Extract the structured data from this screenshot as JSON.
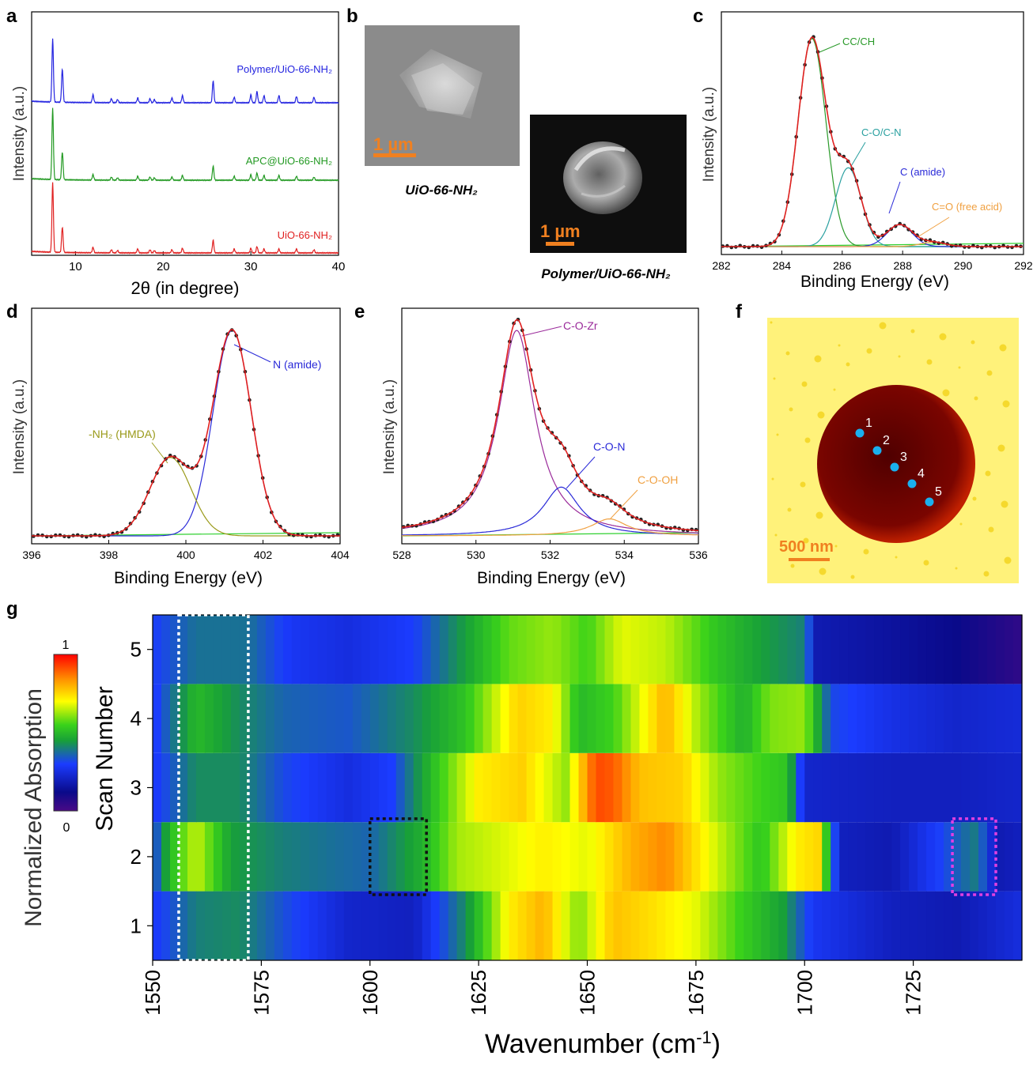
{
  "panels": {
    "a": {
      "letter": "a"
    },
    "b": {
      "letter": "b",
      "scale_left": "1 µm",
      "scale_right": "1 µm",
      "caption_left": "UiO-66-NH₂",
      "caption_right": "Polymer/UiO-66-NH₂"
    },
    "c": {
      "letter": "c"
    },
    "d": {
      "letter": "d"
    },
    "e": {
      "letter": "e"
    },
    "f": {
      "letter": "f",
      "scale": "500 nm",
      "points": [
        "1",
        "2",
        "3",
        "4",
        "5"
      ]
    },
    "g": {
      "letter": "g"
    }
  },
  "chart_data": [
    {
      "panel": "a",
      "type": "line",
      "xlabel": "2θ (in degree)",
      "ylabel": "Intensity (a.u.)",
      "xlim": [
        5,
        40
      ],
      "xticks": [
        10,
        20,
        30,
        40
      ],
      "peaks_2theta": [
        7.4,
        8.5,
        12.0,
        14.1,
        14.8,
        17.1,
        18.5,
        19.0,
        21.0,
        22.2,
        25.7,
        28.1,
        30.0,
        30.7,
        31.5,
        33.2,
        35.2,
        37.2
      ],
      "series": [
        {
          "name": "Polymer/UiO-66-NH₂",
          "color": "#2424e0"
        },
        {
          "name": "APC@UiO-66-NH₂",
          "color": "#229922"
        },
        {
          "name": "UiO-66-NH₂",
          "color": "#e02020"
        }
      ]
    },
    {
      "panel": "c",
      "type": "line",
      "xlabel": "Binding Energy (eV)",
      "ylabel": "Intensity (a.u.)",
      "xlim": [
        282,
        292
      ],
      "xticks": [
        282,
        284,
        286,
        288,
        290,
        292
      ],
      "components": [
        {
          "name": "CC/CH",
          "center": 285.0,
          "height": 0.95,
          "width": 0.65,
          "color": "#2a9a2a"
        },
        {
          "name": "C-O/C-N",
          "center": 286.2,
          "height": 0.36,
          "width": 0.6,
          "color": "#2aa0a0"
        },
        {
          "name": "C (amide)",
          "center": 287.9,
          "height": 0.1,
          "width": 0.6,
          "color": "#2a2ad8"
        },
        {
          "name": "C=O (free acid)",
          "center": 289.0,
          "height": 0.02,
          "width": 0.6,
          "color": "#f0a040"
        }
      ]
    },
    {
      "panel": "d",
      "type": "line",
      "xlabel": "Binding Energy (eV)",
      "ylabel": "Intensity (a.u.)",
      "xlim": [
        396,
        404
      ],
      "xticks": [
        396,
        398,
        400,
        402,
        404
      ],
      "components": [
        {
          "name": "N (amide)",
          "center": 401.2,
          "height": 0.97,
          "width": 0.7,
          "color": "#2a2ad8"
        },
        {
          "name": "-NH₂ (HMDA)",
          "center": 399.6,
          "height": 0.37,
          "width": 0.75,
          "color": "#9a9a1a"
        }
      ]
    },
    {
      "panel": "e",
      "type": "line",
      "xlabel": "Binding Energy (eV)",
      "ylabel": "Intensity (a.u.)",
      "xlim": [
        528,
        536
      ],
      "xticks": [
        528,
        530,
        532,
        534,
        536
      ],
      "components": [
        {
          "name": "C-O-Zr",
          "center": 531.1,
          "height": 0.97,
          "width": 0.6,
          "color": "#9a2a9a"
        },
        {
          "name": "C-O-N",
          "center": 532.3,
          "height": 0.23,
          "width": 0.6,
          "color": "#2a2ad8"
        },
        {
          "name": "C-O-OH",
          "center": 533.6,
          "height": 0.08,
          "width": 0.6,
          "color": "#f0a040"
        }
      ]
    },
    {
      "panel": "g",
      "type": "heatmap",
      "xlabel": "Wavenumber (cm⁻¹)",
      "ylabel": "Scan Number",
      "xlim": [
        1550,
        1750
      ],
      "xticks": [
        1550,
        1575,
        1600,
        1625,
        1650,
        1675,
        1700,
        1725
      ],
      "yticks": [
        1,
        2,
        3,
        4,
        5
      ],
      "colorbar": {
        "label": "Normalized  Absorption",
        "min": "0",
        "max": "1"
      },
      "rows": [
        {
          "scan": 1,
          "profile": [
            [
              1550,
              0.28
            ],
            [
              1560,
              0.4
            ],
            [
              1570,
              0.42
            ],
            [
              1580,
              0.33
            ],
            [
              1595,
              0.22
            ],
            [
              1610,
              0.2
            ],
            [
              1622,
              0.42
            ],
            [
              1632,
              0.72
            ],
            [
              1640,
              0.8
            ],
            [
              1648,
              0.6
            ],
            [
              1656,
              0.78
            ],
            [
              1665,
              0.74
            ],
            [
              1675,
              0.68
            ],
            [
              1685,
              0.55
            ],
            [
              1695,
              0.45
            ],
            [
              1702,
              0.28
            ],
            [
              1720,
              0.2
            ],
            [
              1735,
              0.18
            ],
            [
              1750,
              0.25
            ]
          ]
        },
        {
          "scan": 2,
          "profile": [
            [
              1550,
              0.3
            ],
            [
              1554,
              0.5
            ],
            [
              1560,
              0.66
            ],
            [
              1568,
              0.45
            ],
            [
              1580,
              0.4
            ],
            [
              1590,
              0.38
            ],
            [
              1600,
              0.36
            ],
            [
              1612,
              0.48
            ],
            [
              1620,
              0.63
            ],
            [
              1632,
              0.68
            ],
            [
              1640,
              0.72
            ],
            [
              1650,
              0.68
            ],
            [
              1660,
              0.8
            ],
            [
              1668,
              0.85
            ],
            [
              1680,
              0.66
            ],
            [
              1690,
              0.52
            ],
            [
              1698,
              0.72
            ],
            [
              1703,
              0.75
            ],
            [
              1708,
              0.2
            ],
            [
              1720,
              0.18
            ],
            [
              1735,
              0.35
            ],
            [
              1740,
              0.4
            ],
            [
              1744,
              0.18
            ],
            [
              1750,
              0.2
            ]
          ]
        },
        {
          "scan": 3,
          "profile": [
            [
              1550,
              0.28
            ],
            [
              1560,
              0.42
            ],
            [
              1570,
              0.42
            ],
            [
              1580,
              0.32
            ],
            [
              1595,
              0.25
            ],
            [
              1605,
              0.3
            ],
            [
              1615,
              0.52
            ],
            [
              1625,
              0.72
            ],
            [
              1635,
              0.76
            ],
            [
              1645,
              0.62
            ],
            [
              1652,
              0.92
            ],
            [
              1656,
              0.9
            ],
            [
              1662,
              0.78
            ],
            [
              1672,
              0.76
            ],
            [
              1680,
              0.62
            ],
            [
              1690,
              0.55
            ],
            [
              1696,
              0.52
            ],
            [
              1700,
              0.22
            ],
            [
              1720,
              0.2
            ],
            [
              1735,
              0.2
            ],
            [
              1750,
              0.22
            ]
          ]
        },
        {
          "scan": 4,
          "profile": [
            [
              1550,
              0.28
            ],
            [
              1560,
              0.5
            ],
            [
              1570,
              0.42
            ],
            [
              1580,
              0.36
            ],
            [
              1595,
              0.34
            ],
            [
              1610,
              0.42
            ],
            [
              1622,
              0.52
            ],
            [
              1634,
              0.76
            ],
            [
              1642,
              0.72
            ],
            [
              1648,
              0.5
            ],
            [
              1656,
              0.55
            ],
            [
              1668,
              0.8
            ],
            [
              1676,
              0.62
            ],
            [
              1686,
              0.48
            ],
            [
              1692,
              0.6
            ],
            [
              1700,
              0.62
            ],
            [
              1706,
              0.32
            ],
            [
              1720,
              0.26
            ],
            [
              1735,
              0.22
            ],
            [
              1750,
              0.24
            ]
          ]
        },
        {
          "scan": 5,
          "profile": [
            [
              1550,
              0.3
            ],
            [
              1560,
              0.38
            ],
            [
              1572,
              0.38
            ],
            [
              1582,
              0.28
            ],
            [
              1595,
              0.25
            ],
            [
              1610,
              0.3
            ],
            [
              1622,
              0.45
            ],
            [
              1632,
              0.58
            ],
            [
              1642,
              0.62
            ],
            [
              1650,
              0.55
            ],
            [
              1658,
              0.68
            ],
            [
              1668,
              0.65
            ],
            [
              1680,
              0.52
            ],
            [
              1690,
              0.45
            ],
            [
              1700,
              0.4
            ],
            [
              1703,
              0.18
            ],
            [
              1720,
              0.15
            ],
            [
              1735,
              0.12
            ],
            [
              1750,
              0.05
            ]
          ]
        }
      ],
      "boxes": [
        {
          "color": "#ffffff",
          "x": [
            1556,
            1572
          ],
          "y": [
            0.5,
            5.5
          ]
        },
        {
          "color": "#111111",
          "x": [
            1600,
            1613
          ],
          "y": [
            1.45,
            2.55
          ]
        },
        {
          "color": "#e040e0",
          "x": [
            1734,
            1744
          ],
          "y": [
            1.45,
            2.55
          ]
        }
      ]
    }
  ]
}
